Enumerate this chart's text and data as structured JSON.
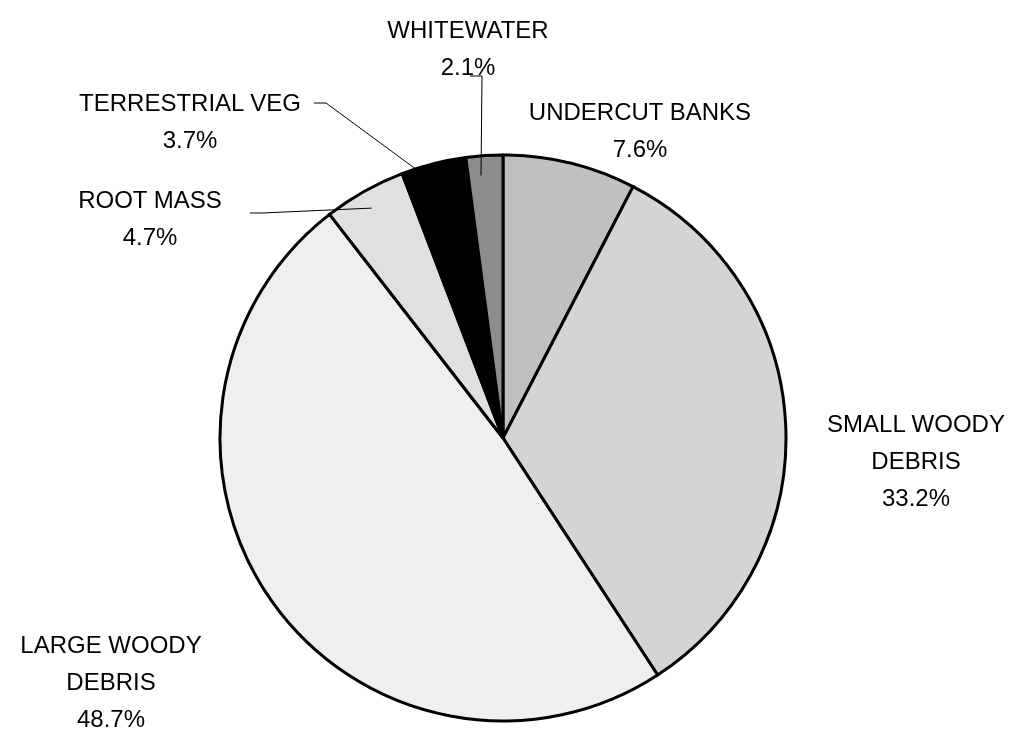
{
  "chart_data": {
    "type": "pie",
    "categories": [
      "UNDERCUT BANKS",
      "SMALL WOODY DEBRIS",
      "LARGE WOODY DEBRIS",
      "ROOT MASS",
      "TERRESTRIAL VEG",
      "WHITEWATER"
    ],
    "values": [
      7.6,
      33.2,
      48.7,
      4.7,
      3.7,
      2.1
    ],
    "value_labels": [
      "7.6%",
      "33.2%",
      "48.7%",
      "4.7%",
      "3.7%",
      "2.1%"
    ],
    "colors": [
      "#c0c0c0",
      "#d4d4d4",
      "#efefef",
      "#e0e0e0",
      "#000000",
      "#8c8c8c"
    ],
    "legend": false
  }
}
